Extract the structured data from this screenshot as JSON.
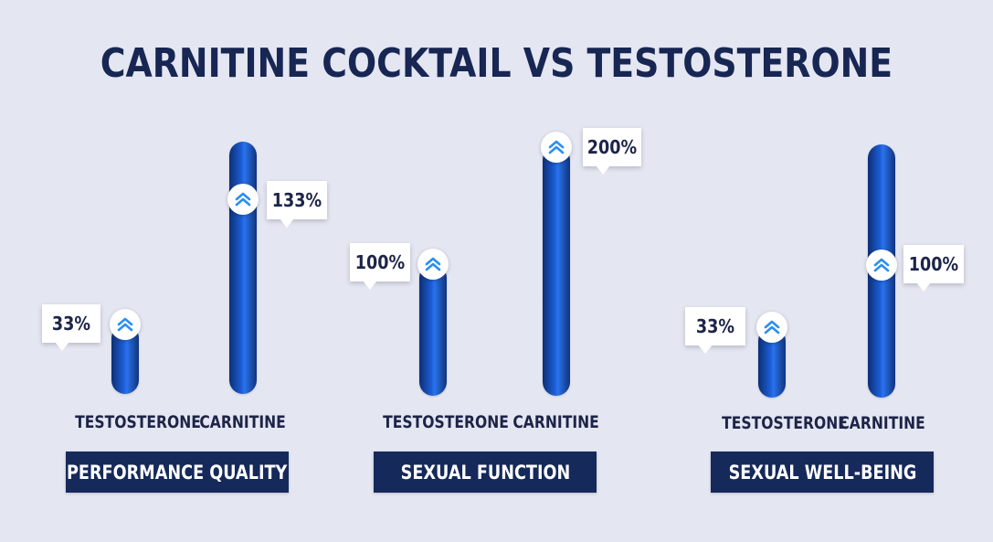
{
  "title": "CARNITINE COCKTAIL VS TESTOSTERONE",
  "colors": {
    "background": "#e4e6f2",
    "title": "#172652",
    "bar_dark": "#0d2f73",
    "bar_light": "#2a73ee",
    "group_box": "#15295a",
    "chevron": "#2a8ff0"
  },
  "icons": {
    "marker": "double-chevron-up-icon"
  },
  "chart_data": [
    {
      "type": "bar",
      "group": "PERFORMANCE QUALITY",
      "categories": [
        "TESTOSTERONE",
        "CARNITINE"
      ],
      "values": [
        33,
        133
      ],
      "labels": [
        "33%",
        "133%"
      ]
    },
    {
      "type": "bar",
      "group": "SEXUAL FUNCTION",
      "categories": [
        "TESTOSTERONE",
        "CARNITINE"
      ],
      "values": [
        100,
        200
      ],
      "labels": [
        "100%",
        "200%"
      ]
    },
    {
      "type": "bar",
      "group": "SEXUAL WELL-BEING",
      "categories": [
        "TESTOSTERONE",
        "CARNITINE"
      ],
      "values": [
        33,
        100
      ],
      "labels": [
        "33%",
        "100%"
      ]
    }
  ]
}
